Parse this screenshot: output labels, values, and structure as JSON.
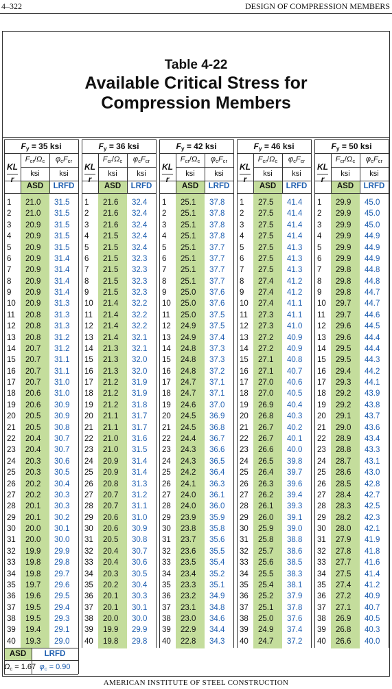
{
  "page_header": {
    "page_number": "4–322",
    "section": "DESIGN OF COMPRESSION MEMBERS"
  },
  "title": {
    "number": "Table 4-22",
    "lines": [
      "Available Critical Stress for",
      "Compression Members"
    ]
  },
  "table": {
    "column_headers": {
      "kl": "KL",
      "r": "r",
      "asd_head": "Fcr/Ωc",
      "lrfd_head": "φcFcr",
      "unit": "ksi",
      "asd": "ASD",
      "lrfd": "LRFD"
    },
    "kl": [
      1,
      2,
      3,
      4,
      5,
      6,
      7,
      8,
      9,
      10,
      11,
      12,
      13,
      14,
      15,
      16,
      17,
      18,
      19,
      20,
      21,
      22,
      23,
      24,
      25,
      26,
      27,
      28,
      29,
      30,
      31,
      32,
      33,
      34,
      35,
      36,
      37,
      38,
      39,
      40
    ],
    "groups": [
      {
        "fy": "Fy = 35 ksi",
        "asd": [
          "21.0",
          "21.0",
          "20.9",
          "20.9",
          "20.9",
          "20.9",
          "20.9",
          "20.9",
          "20.9",
          "20.9",
          "20.8",
          "20.8",
          "20.8",
          "20.7",
          "20.7",
          "20.7",
          "20.7",
          "20.6",
          "20.6",
          "20.5",
          "20.5",
          "20.4",
          "20.4",
          "20.3",
          "20.3",
          "20.2",
          "20.2",
          "20.1",
          "20.1",
          "20.0",
          "20.0",
          "19.9",
          "19.8",
          "19.8",
          "19.7",
          "19.6",
          "19.5",
          "19.5",
          "19.4",
          "19.3"
        ],
        "lrfd": [
          "31.5",
          "31.5",
          "31.5",
          "31.5",
          "31.5",
          "31.4",
          "31.4",
          "31.4",
          "31.4",
          "31.3",
          "31.3",
          "31.3",
          "31.2",
          "31.2",
          "31.1",
          "31.1",
          "31.0",
          "31.0",
          "30.9",
          "30.9",
          "30.8",
          "30.7",
          "30.7",
          "30.6",
          "30.5",
          "30.4",
          "30.3",
          "30.3",
          "30.2",
          "30.1",
          "30.0",
          "29.9",
          "29.8",
          "29.7",
          "29.6",
          "29.5",
          "29.4",
          "29.3",
          "29.1",
          "29.0"
        ]
      },
      {
        "fy": "Fy = 36 ksi",
        "asd": [
          "21.6",
          "21.6",
          "21.6",
          "21.5",
          "21.5",
          "21.5",
          "21.5",
          "21.5",
          "21.5",
          "21.4",
          "21.4",
          "21.4",
          "21.4",
          "21.3",
          "21.3",
          "21.3",
          "21.2",
          "21.2",
          "21.2",
          "21.1",
          "21.1",
          "21.0",
          "21.0",
          "20.9",
          "20.9",
          "20.8",
          "20.7",
          "20.7",
          "20.6",
          "20.6",
          "20.5",
          "20.4",
          "20.4",
          "20.3",
          "20.2",
          "20.1",
          "20.1",
          "20.0",
          "19.9",
          "19.8"
        ],
        "lrfd": [
          "32.4",
          "32.4",
          "32.4",
          "32.4",
          "32.4",
          "32.3",
          "32.3",
          "32.3",
          "32.3",
          "32.2",
          "32.2",
          "32.2",
          "32.1",
          "32.1",
          "32.0",
          "32.0",
          "31.9",
          "31.9",
          "31.8",
          "31.7",
          "31.7",
          "31.6",
          "31.5",
          "31.4",
          "31.4",
          "31.3",
          "31.2",
          "31.1",
          "31.0",
          "30.9",
          "30.8",
          "30.7",
          "30.6",
          "30.5",
          "30.4",
          "30.3",
          "30.1",
          "30.0",
          "29.9",
          "29.8"
        ]
      },
      {
        "fy": "Fy = 42 ksi",
        "asd": [
          "25.1",
          "25.1",
          "25.1",
          "25.1",
          "25.1",
          "25.1",
          "25.1",
          "25.1",
          "25.0",
          "25.0",
          "25.0",
          "24.9",
          "24.9",
          "24.8",
          "24.8",
          "24.8",
          "24.7",
          "24.7",
          "24.6",
          "24.5",
          "24.5",
          "24.4",
          "24.3",
          "24.3",
          "24.2",
          "24.1",
          "24.0",
          "24.0",
          "23.9",
          "23.8",
          "23.7",
          "23.6",
          "23.5",
          "23.4",
          "23.3",
          "23.2",
          "23.1",
          "23.0",
          "22.9",
          "22.8"
        ],
        "lrfd": [
          "37.8",
          "37.8",
          "37.8",
          "37.8",
          "37.7",
          "37.7",
          "37.7",
          "37.7",
          "37.6",
          "37.6",
          "37.5",
          "37.5",
          "37.4",
          "37.3",
          "37.3",
          "37.2",
          "37.1",
          "37.1",
          "37.0",
          "36.9",
          "36.8",
          "36.7",
          "36.6",
          "36.5",
          "36.4",
          "36.3",
          "36.1",
          "36.0",
          "35.9",
          "35.8",
          "35.6",
          "35.5",
          "35.4",
          "35.2",
          "35.1",
          "34.9",
          "34.8",
          "34.6",
          "34.4",
          "34.3"
        ]
      },
      {
        "fy": "Fy = 46 ksi",
        "asd": [
          "27.5",
          "27.5",
          "27.5",
          "27.5",
          "27.5",
          "27.5",
          "27.5",
          "27.4",
          "27.4",
          "27.4",
          "27.3",
          "27.3",
          "27.2",
          "27.2",
          "27.1",
          "27.1",
          "27.0",
          "27.0",
          "26.9",
          "26.8",
          "26.7",
          "26.7",
          "26.6",
          "26.5",
          "26.4",
          "26.3",
          "26.2",
          "26.1",
          "26.0",
          "25.9",
          "25.8",
          "25.7",
          "25.6",
          "25.5",
          "25.4",
          "25.2",
          "25.1",
          "25.0",
          "24.9",
          "24.7"
        ],
        "lrfd": [
          "41.4",
          "41.4",
          "41.4",
          "41.4",
          "41.3",
          "41.3",
          "41.3",
          "41.2",
          "41.2",
          "41.1",
          "41.1",
          "41.0",
          "40.9",
          "40.9",
          "40.8",
          "40.7",
          "40.6",
          "40.5",
          "40.4",
          "40.3",
          "40.2",
          "40.1",
          "40.0",
          "39.8",
          "39.7",
          "39.6",
          "39.4",
          "39.3",
          "39.1",
          "39.0",
          "38.8",
          "38.6",
          "38.5",
          "38.3",
          "38.1",
          "37.9",
          "37.8",
          "37.6",
          "37.4",
          "37.2"
        ]
      },
      {
        "fy": "Fy = 50 ksi",
        "asd": [
          "29.9",
          "29.9",
          "29.9",
          "29.9",
          "29.9",
          "29.9",
          "29.8",
          "29.8",
          "29.8",
          "29.7",
          "29.7",
          "29.6",
          "29.6",
          "29.5",
          "29.5",
          "29.4",
          "29.3",
          "29.2",
          "29.2",
          "29.1",
          "29.0",
          "28.9",
          "28.8",
          "28.7",
          "28.6",
          "28.5",
          "28.4",
          "28.3",
          "28.2",
          "28.0",
          "27.9",
          "27.8",
          "27.7",
          "27.5",
          "27.4",
          "27.2",
          "27.1",
          "26.9",
          "26.8",
          "26.6"
        ],
        "lrfd": [
          "45.0",
          "45.0",
          "45.0",
          "44.9",
          "44.9",
          "44.9",
          "44.8",
          "44.8",
          "44.7",
          "44.7",
          "44.6",
          "44.5",
          "44.4",
          "44.4",
          "44.3",
          "44.2",
          "44.1",
          "43.9",
          "43.8",
          "43.7",
          "43.6",
          "43.4",
          "43.3",
          "43.1",
          "43.0",
          "42.8",
          "42.7",
          "42.5",
          "42.3",
          "42.1",
          "41.9",
          "41.8",
          "41.6",
          "41.4",
          "41.2",
          "40.9",
          "40.7",
          "40.5",
          "40.3",
          "40.0"
        ]
      }
    ]
  },
  "footer_note": {
    "asd": "ASD",
    "lrfd": "LRFD",
    "omega": "Ωc = 1.67",
    "phi": "φc = 0.90"
  },
  "page_footer": "AMERICAN INSTITUTE OF STEEL CONSTRUCTION"
}
